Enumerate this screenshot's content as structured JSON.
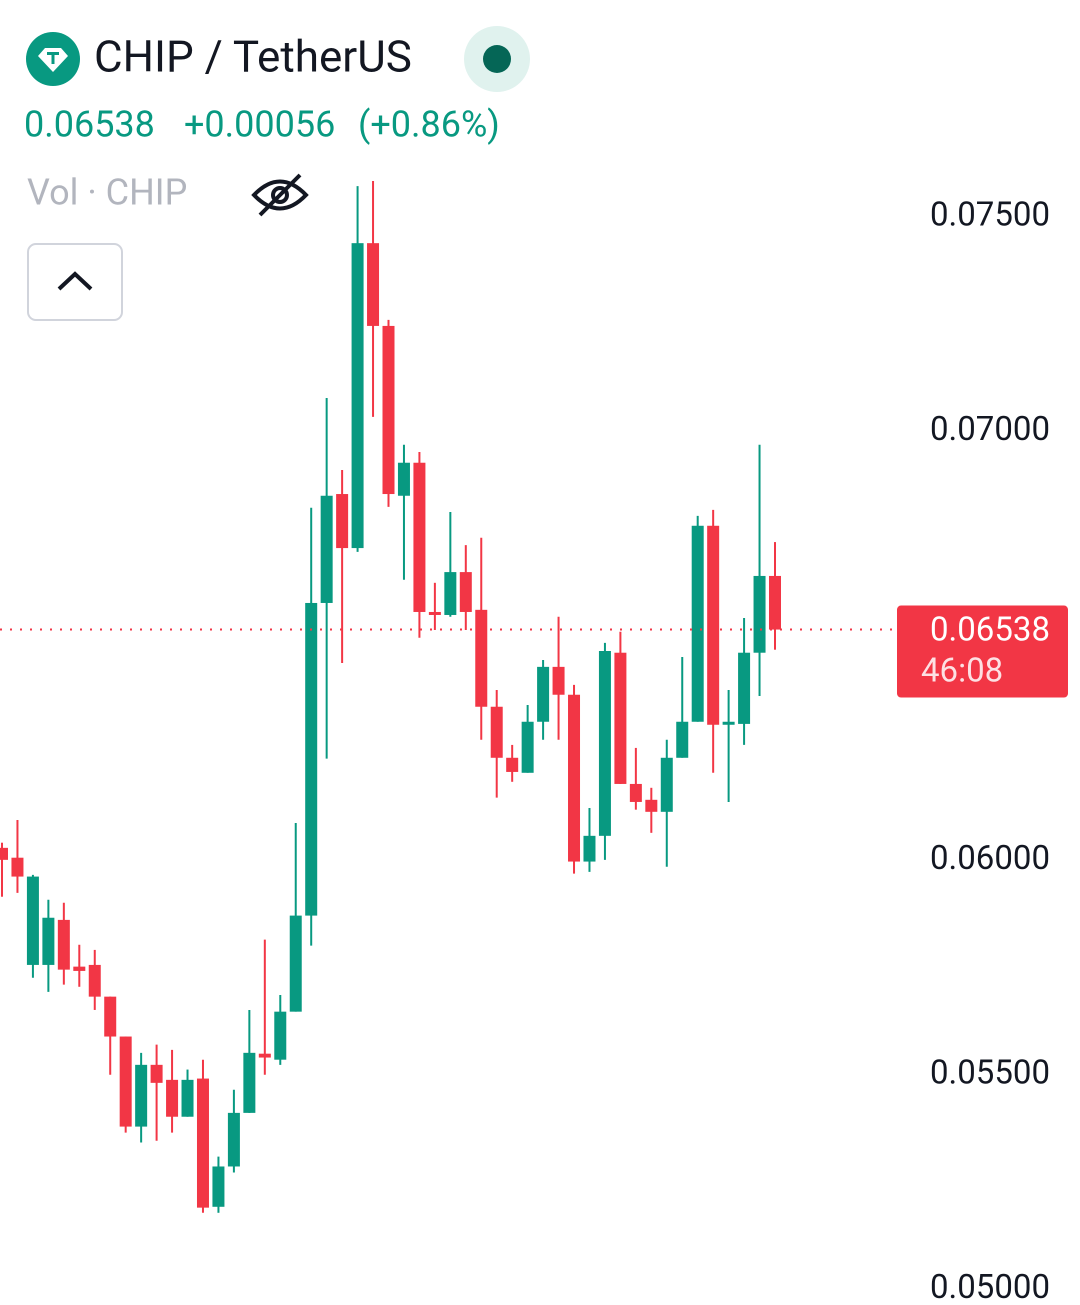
{
  "header": {
    "symbol": "CHIP / TetherUS",
    "price": "0.06538",
    "change": "+0.00056",
    "change_percent": "(+0.86%)",
    "volume_label": "Vol · CHIP"
  },
  "chart_data": {
    "type": "candlestick",
    "up_color": "#089981",
    "down_color": "#f23645",
    "open": [
      0.06029,
      0.06006,
      0.05756,
      0.05756,
      0.05861,
      0.05752,
      0.05756,
      0.05682,
      0.05589,
      0.05379,
      0.05523,
      0.05488,
      0.05402,
      0.05491,
      0.05192,
      0.05286,
      0.05411,
      0.05549,
      0.05535,
      0.05647,
      0.05871,
      0.066,
      0.06854,
      0.06728,
      0.07439,
      0.07246,
      0.0685,
      0.06927,
      0.06579,
      0.06572,
      0.06672,
      0.06584,
      0.06358,
      0.06239,
      0.06204,
      0.06323,
      0.06451,
      0.06386,
      0.05997,
      0.06057,
      0.06484,
      0.06178,
      0.06141,
      0.06113,
      0.06239,
      0.06323,
      0.0678,
      0.06316,
      0.06318,
      0.06484,
      0.06663
    ],
    "high": [
      0.06041,
      0.06094,
      0.05966,
      0.05908,
      0.05901,
      0.05803,
      0.05791,
      0.05682,
      0.05589,
      0.05551,
      0.0557,
      0.05558,
      0.05512,
      0.05535,
      0.05309,
      0.05465,
      0.05651,
      0.05815,
      0.05686,
      0.06087,
      0.06822,
      0.07078,
      0.0691,
      0.07572,
      0.07584,
      0.0726,
      0.06969,
      0.06952,
      0.06647,
      0.06812,
      0.06735,
      0.06752,
      0.06397,
      0.06269,
      0.06362,
      0.06467,
      0.06568,
      0.06409,
      0.06122,
      0.06507,
      0.06533,
      0.06262,
      0.06169,
      0.06281,
      0.06474,
      0.06803,
      0.06817,
      0.06397,
      0.06565,
      0.06969,
      0.06742
    ],
    "low": [
      0.05915,
      0.05924,
      0.05726,
      0.05693,
      0.0571,
      0.05705,
      0.05651,
      0.055,
      0.05365,
      0.05342,
      0.05346,
      0.05365,
      0.05402,
      0.05178,
      0.05178,
      0.05272,
      0.05411,
      0.055,
      0.05523,
      0.05647,
      0.05801,
      0.06237,
      0.0646,
      0.06719,
      0.07034,
      0.06824,
      0.06654,
      0.06519,
      0.06537,
      0.06568,
      0.06537,
      0.06281,
      0.06146,
      0.06183,
      0.06204,
      0.06281,
      0.06281,
      0.05969,
      0.05973,
      0.06001,
      0.06178,
      0.06118,
      0.06064,
      0.05985,
      0.06239,
      0.06323,
      0.06204,
      0.06136,
      0.06269,
      0.06383,
      0.06491
    ],
    "close": [
      0.06001,
      0.05962,
      0.05962,
      0.05866,
      0.05745,
      0.05742,
      0.05682,
      0.05589,
      0.05379,
      0.05523,
      0.05481,
      0.05402,
      0.05488,
      0.0519,
      0.05286,
      0.05411,
      0.05551,
      0.0554,
      0.05647,
      0.05871,
      0.066,
      0.0685,
      0.06728,
      0.07439,
      0.07246,
      0.06854,
      0.06927,
      0.06579,
      0.06572,
      0.06672,
      0.06579,
      0.06358,
      0.06239,
      0.06206,
      0.06323,
      0.06451,
      0.06386,
      0.05997,
      0.06057,
      0.06488,
      0.06178,
      0.06136,
      0.06113,
      0.06239,
      0.06323,
      0.0678,
      0.06316,
      0.06323,
      0.06484,
      0.06663,
      0.06538
    ],
    "ylim": [
      0.04963,
      0.08006
    ],
    "yticks": [
      {
        "value": 0.05,
        "label": "0.05000"
      },
      {
        "value": 0.055,
        "label": "0.05500"
      },
      {
        "value": 0.06,
        "label": "0.06000"
      },
      {
        "value": 0.07,
        "label": "0.07000"
      },
      {
        "value": 0.075,
        "label": "0.07500"
      }
    ],
    "last_price": 0.06538,
    "countdown": "46:08"
  }
}
